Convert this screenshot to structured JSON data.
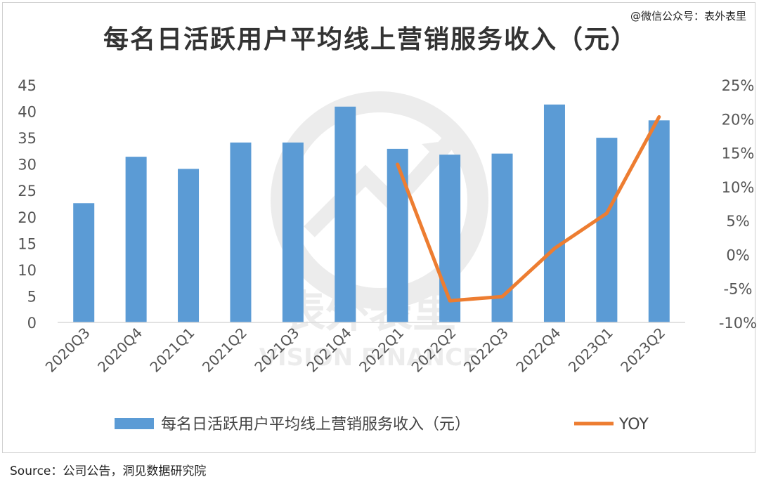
{
  "header": {
    "watermark_text": "@微信公众号：表外表里"
  },
  "footer": {
    "source_text": "Source：公司公告，洞见数据研究院"
  },
  "colors": {
    "bar": "#5B9BD5",
    "line": "#ED7D31",
    "grid": "#d9d9d9"
  },
  "chart_data": {
    "type": "bar",
    "title": "每名日活跃用户平均线上营销服务收入（元）",
    "categories": [
      "2020Q3",
      "2020Q4",
      "2021Q1",
      "2021Q2",
      "2021Q3",
      "2021Q4",
      "2022Q1",
      "2022Q2",
      "2022Q3",
      "2022Q4",
      "2023Q1",
      "2023Q2"
    ],
    "series": [
      {
        "name": "每名日活跃用户平均线上营销服务收入（元）",
        "kind": "bar",
        "axis": "left",
        "values": [
          22.6,
          31.4,
          29.1,
          34.1,
          34.1,
          40.9,
          32.9,
          31.8,
          32.0,
          41.3,
          35.0,
          38.3
        ]
      },
      {
        "name": "YOY",
        "kind": "line",
        "axis": "right",
        "values": [
          null,
          null,
          null,
          null,
          null,
          null,
          13.3,
          -6.8,
          -6.2,
          0.9,
          6.1,
          20.3
        ]
      }
    ],
    "y_left": {
      "min": 0,
      "max": 45,
      "step": 5,
      "ticks": [
        "0",
        "5",
        "10",
        "15",
        "20",
        "25",
        "30",
        "35",
        "40",
        "45"
      ]
    },
    "y_right": {
      "min": -10,
      "max": 25,
      "step": 5,
      "ticks": [
        "-10%",
        "-5%",
        "0%",
        "5%",
        "10%",
        "15%",
        "20%",
        "25%"
      ]
    },
    "grid": false,
    "legend_position": "bottom"
  }
}
